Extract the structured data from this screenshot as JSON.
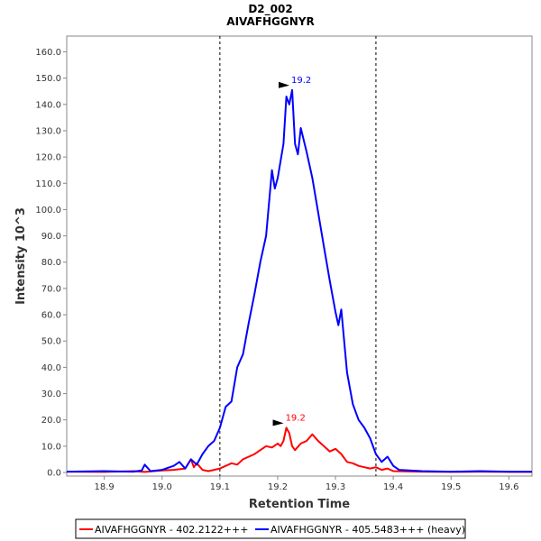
{
  "chart_data": {
    "type": "line",
    "title": "D2_002",
    "subtitle": "AIVAFHGGNYR",
    "xlabel": "Retention Time",
    "ylabel": "Intensity 10^3",
    "xlim": [
      18.835,
      19.64
    ],
    "ylim": [
      0,
      166
    ],
    "x_ticks": [
      18.9,
      19.0,
      19.1,
      19.2,
      19.3,
      19.4,
      19.5,
      19.6
    ],
    "x_tick_labels": [
      "18.9",
      "19.0",
      "19.1",
      "19.2",
      "19.3",
      "19.4",
      "19.5",
      "19.6"
    ],
    "y_ticks": [
      0,
      10,
      20,
      30,
      40,
      50,
      60,
      70,
      80,
      90,
      100,
      110,
      120,
      130,
      140,
      150,
      160
    ],
    "y_tick_labels": [
      "0.0",
      "10.0",
      "20.0",
      "30.0",
      "40.0",
      "50.0",
      "60.0",
      "70.0",
      "80.0",
      "90.0",
      "100.0",
      "110.0",
      "120.0",
      "130.0",
      "140.0",
      "150.0",
      "160.0"
    ],
    "integration_boundaries": [
      19.1,
      19.37
    ],
    "legend_position": "bottom",
    "series": [
      {
        "name": "AIVAFHGGNYR - 402.2122+++",
        "color": "#ff0000",
        "peak_label": "19.2",
        "peak": [
          19.215,
          17
        ],
        "x": [
          18.835,
          18.9,
          18.95,
          18.97,
          19.0,
          19.02,
          19.04,
          19.05,
          19.055,
          19.06,
          19.07,
          19.08,
          19.09,
          19.1,
          19.11,
          19.12,
          19.13,
          19.14,
          19.15,
          19.16,
          19.17,
          19.18,
          19.19,
          19.2,
          19.205,
          19.21,
          19.215,
          19.22,
          19.225,
          19.23,
          19.24,
          19.25,
          19.26,
          19.27,
          19.28,
          19.29,
          19.3,
          19.31,
          19.32,
          19.33,
          19.34,
          19.35,
          19.36,
          19.37,
          19.38,
          19.39,
          19.4,
          19.45,
          19.5,
          19.55,
          19.6,
          19.64
        ],
        "values": [
          0.3,
          0.2,
          0.5,
          0.2,
          0.8,
          1.0,
          1.5,
          5.0,
          2.0,
          3.5,
          1.0,
          0.5,
          1.0,
          1.5,
          2.5,
          3.5,
          3.0,
          5.0,
          6.0,
          7.0,
          8.5,
          10.0,
          9.5,
          11.0,
          10.0,
          12.0,
          17.0,
          15.0,
          10.0,
          8.5,
          11.0,
          12.0,
          14.5,
          12.0,
          10.0,
          8.0,
          9.0,
          7.0,
          4.0,
          3.5,
          2.5,
          2.0,
          1.5,
          2.0,
          1.0,
          1.5,
          0.5,
          0.3,
          0.2,
          0.3,
          0.2,
          0.2
        ]
      },
      {
        "name": "AIVAFHGGNYR - 405.5483+++ (heavy)",
        "color": "#0000ff",
        "peak_label": "19.2",
        "peak": [
          19.225,
          145.5
        ],
        "x": [
          18.835,
          18.9,
          18.95,
          18.965,
          18.97,
          18.98,
          19.0,
          19.02,
          19.03,
          19.04,
          19.05,
          19.06,
          19.07,
          19.08,
          19.09,
          19.1,
          19.11,
          19.12,
          19.13,
          19.14,
          19.15,
          19.16,
          19.17,
          19.18,
          19.19,
          19.195,
          19.2,
          19.21,
          19.215,
          19.22,
          19.225,
          19.23,
          19.235,
          19.24,
          19.25,
          19.26,
          19.27,
          19.28,
          19.29,
          19.3,
          19.305,
          19.31,
          19.32,
          19.33,
          19.34,
          19.35,
          19.36,
          19.37,
          19.38,
          19.39,
          19.4,
          19.41,
          19.45,
          19.5,
          19.55,
          19.6,
          19.64
        ],
        "values": [
          0.3,
          0.5,
          0.3,
          0.8,
          3.0,
          0.5,
          1.0,
          2.5,
          4.0,
          1.5,
          5.0,
          3.0,
          7.0,
          10.0,
          12.0,
          17.0,
          25.0,
          27.0,
          40.0,
          45.0,
          57.0,
          68.0,
          80.0,
          90.0,
          115.0,
          108.0,
          112.0,
          125.0,
          143.0,
          140.0,
          145.5,
          125.0,
          121.0,
          131.0,
          122.0,
          112.0,
          99.0,
          86.0,
          73.0,
          61.0,
          56.0,
          62.0,
          38.0,
          26.0,
          20.0,
          17.0,
          13.0,
          7.0,
          4.0,
          6.0,
          2.5,
          1.0,
          0.5,
          0.3,
          0.5,
          0.3,
          0.3
        ]
      }
    ]
  }
}
